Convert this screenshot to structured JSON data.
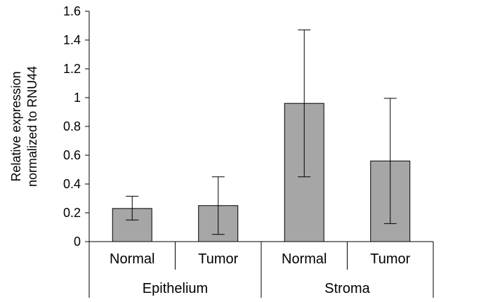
{
  "chart_data": {
    "type": "bar",
    "title": "",
    "ylabel_lines": [
      "Relative expression",
      "normalized to RNU44"
    ],
    "ylim": [
      0,
      1.6
    ],
    "yticks": [
      "0",
      "0.2",
      "0.4",
      "0.6",
      "0.8",
      "1",
      "1.2",
      "1.4",
      "1.6"
    ],
    "groups": [
      "Epithelium",
      "Stroma"
    ],
    "categories": [
      "Normal",
      "Tumor",
      "Normal",
      "Tumor"
    ],
    "category_group": [
      0,
      0,
      1,
      1
    ],
    "values": [
      0.23,
      0.25,
      0.96,
      0.56
    ],
    "error_low": [
      0.15,
      0.05,
      0.45,
      0.125
    ],
    "error_high": [
      0.315,
      0.45,
      1.47,
      0.995
    ],
    "bar_color": "#a6a6a6",
    "grid": false,
    "legend": "none"
  }
}
